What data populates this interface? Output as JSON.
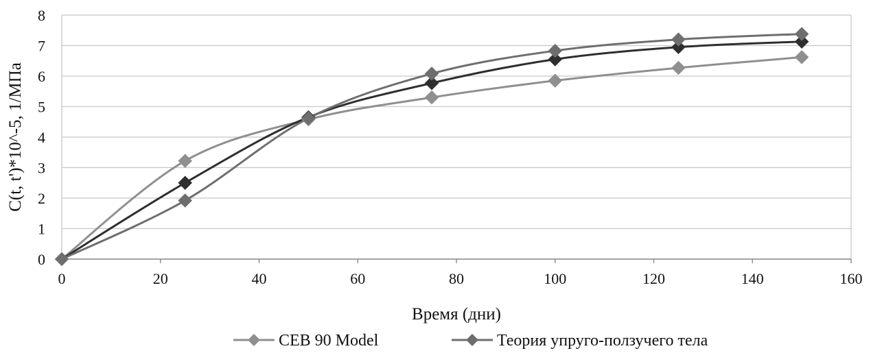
{
  "chart_data": {
    "type": "line",
    "title": "",
    "xlabel": "Время (дни)",
    "ylabel": "C(t, t')*10^-5, 1/МПа",
    "xlim": [
      0,
      160
    ],
    "ylim": [
      0,
      8
    ],
    "xticks": [
      "0",
      "20",
      "40",
      "60",
      "80",
      "100",
      "120",
      "140",
      "160"
    ],
    "yticks": [
      "0",
      "1",
      "2",
      "3",
      "4",
      "5",
      "6",
      "7",
      "8"
    ],
    "grid": "horizontal",
    "legend_position": "bottom",
    "x": [
      0,
      25,
      50,
      75,
      100,
      125,
      150
    ],
    "series": [
      {
        "name": "CEB 90 Model",
        "values": [
          0,
          3.22,
          4.58,
          5.3,
          5.85,
          6.27,
          6.62
        ],
        "color": "#8f8f8f",
        "marker": "diamond",
        "smooth": true
      },
      {
        "name": "",
        "values": [
          0,
          2.5,
          4.65,
          5.77,
          6.55,
          6.95,
          7.13
        ],
        "color": "#2e2e2e",
        "marker": "diamond",
        "smooth": true
      },
      {
        "name": "Теория упруго-ползучего тела",
        "values": [
          0,
          1.92,
          4.62,
          6.08,
          6.83,
          7.2,
          7.38
        ],
        "color": "#6e6e6e",
        "marker": "diamond",
        "smooth": true
      }
    ]
  }
}
